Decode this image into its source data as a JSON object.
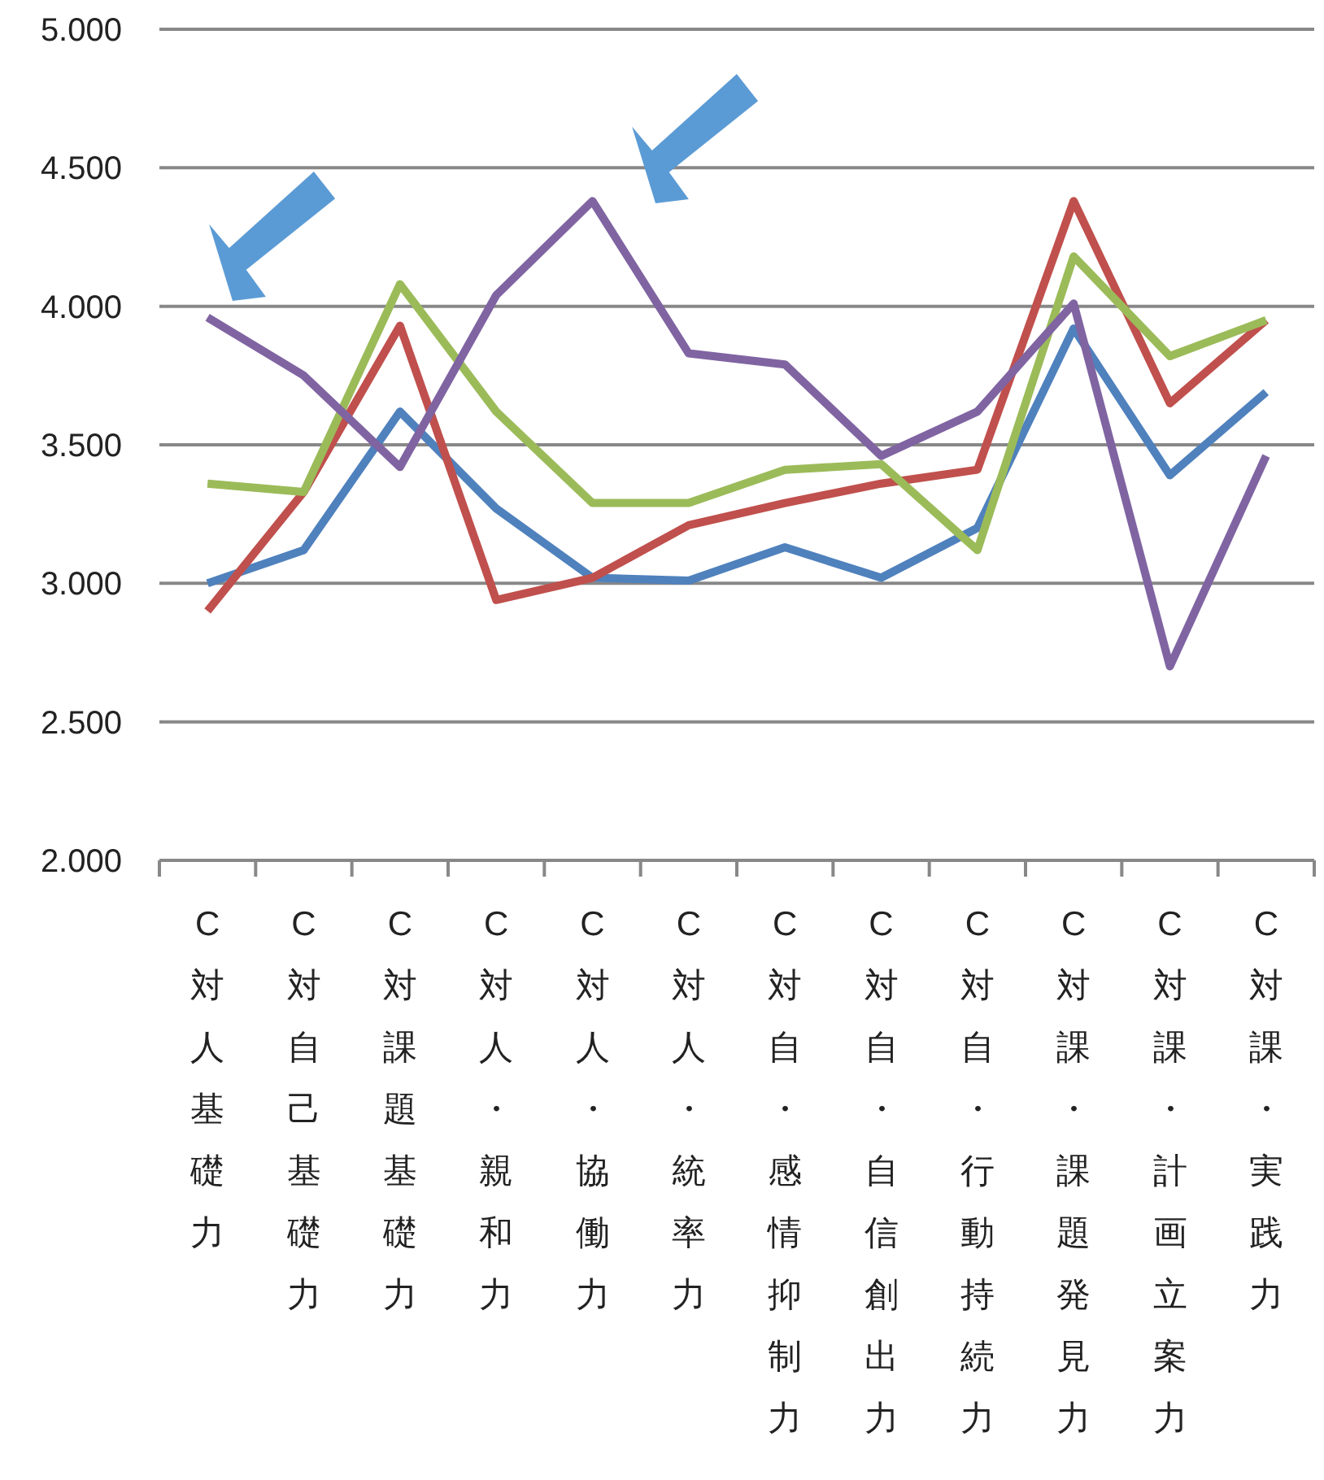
{
  "chart_data": {
    "type": "line",
    "categories": [
      "C対人基礎力",
      "C対自己基礎力",
      "C対課題基礎力",
      "C対人・親和力",
      "C対人・協働力",
      "C対人・統率力",
      "C対自・感情抑制力",
      "C対自・自信創出力",
      "C対自・行動持続力",
      "C対課・課題発見力",
      "C対課・計画立案力",
      "C対課・実践力"
    ],
    "series": [
      {
        "color": "#4f81bd",
        "values": [
          3.0,
          3.12,
          3.62,
          3.27,
          3.02,
          3.01,
          3.13,
          3.02,
          3.2,
          3.92,
          3.39,
          3.69
        ]
      },
      {
        "color": "#c0504d",
        "values": [
          2.9,
          3.33,
          3.93,
          2.94,
          3.02,
          3.21,
          3.29,
          3.36,
          3.41,
          4.38,
          3.65,
          3.95
        ]
      },
      {
        "color": "#9bbb59",
        "values": [
          3.36,
          3.33,
          4.08,
          3.62,
          3.29,
          3.29,
          3.41,
          3.43,
          3.12,
          4.18,
          3.82,
          3.95
        ]
      },
      {
        "color": "#8064a2",
        "values": [
          3.96,
          3.75,
          3.42,
          4.04,
          4.38,
          3.83,
          3.79,
          3.46,
          3.62,
          4.01,
          2.7,
          3.46
        ]
      }
    ],
    "ylim": [
      2,
      5
    ],
    "yticks": [
      {
        "value": 2,
        "label": "2.000"
      },
      {
        "value": 2.5,
        "label": "2.500"
      },
      {
        "value": 3,
        "label": "3.000"
      },
      {
        "value": 3.5,
        "label": "3.500"
      },
      {
        "value": 4,
        "label": "4.000"
      },
      {
        "value": 4.5,
        "label": "4.500"
      },
      {
        "value": 5,
        "label": "5.000"
      }
    ],
    "grid": "y",
    "marker": "none",
    "line_style": "solid"
  }
}
